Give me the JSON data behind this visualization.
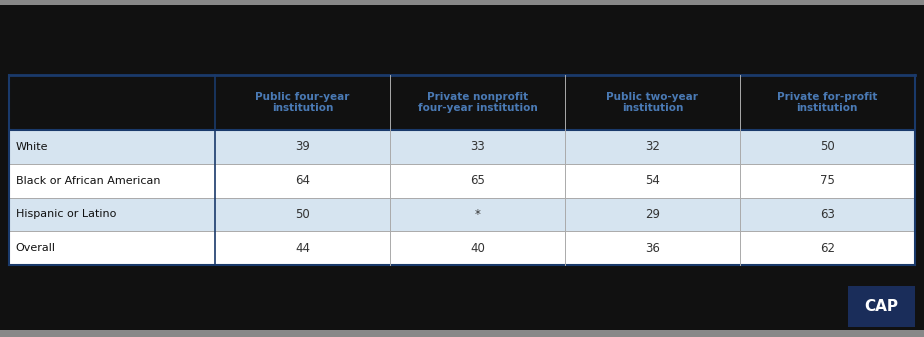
{
  "header_text_color": "#4a7ab5",
  "row_bg_colors": [
    "#d6e4f0",
    "#ffffff",
    "#d6e4f0",
    "#ffffff"
  ],
  "header_bg_color": "#111111",
  "border_color_dark": "#1a3a6b",
  "border_color_light": "#aaaaaa",
  "text_color_left": "#111111",
  "text_color_data": "#333333",
  "col_headers": [
    "Public four-year\ninstitution",
    "Private nonprofit\nfour-year institution",
    "Public two-year\ninstitution",
    "Private for-profit\ninstitution"
  ],
  "row_labels": [
    "White",
    "Black or African American",
    "Hispanic or Latino",
    "Overall"
  ],
  "data": [
    [
      "39",
      "33",
      "32",
      "50"
    ],
    [
      "64",
      "65",
      "54",
      "75"
    ],
    [
      "50",
      "*",
      "29",
      "63"
    ],
    [
      "44",
      "40",
      "36",
      "62"
    ]
  ],
  "figsize": [
    9.24,
    3.37
  ],
  "dpi": 100,
  "cap_logo_bg": "#1a2d5a",
  "fig_bg": "#111111",
  "table_bg": "#ffffff",
  "top_gray_bar_color": "#888888",
  "bottom_gray_bar_color": "#888888"
}
